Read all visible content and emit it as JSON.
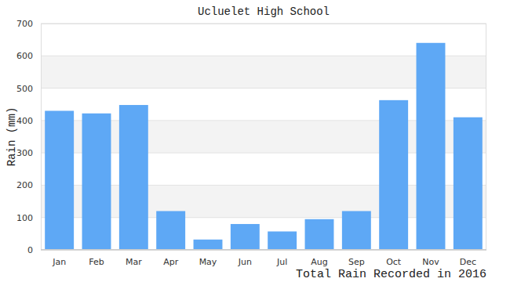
{
  "chart_data": {
    "type": "bar",
    "title": "Ucluelet High School",
    "y_label": "Rain (mm)",
    "x_label": "Total Rain Recorded in 2016",
    "categories": [
      "Jan",
      "Feb",
      "Mar",
      "Apr",
      "May",
      "Jun",
      "Jul",
      "Aug",
      "Sep",
      "Oct",
      "Nov",
      "Dec"
    ],
    "values": [
      430,
      422,
      448,
      120,
      32,
      80,
      57,
      95,
      120,
      463,
      640,
      410
    ],
    "color": "#5ea8f5",
    "ylim": [
      0,
      700
    ],
    "yticks": [
      0,
      100,
      200,
      300,
      400,
      500,
      600,
      700
    ],
    "grid": true
  }
}
